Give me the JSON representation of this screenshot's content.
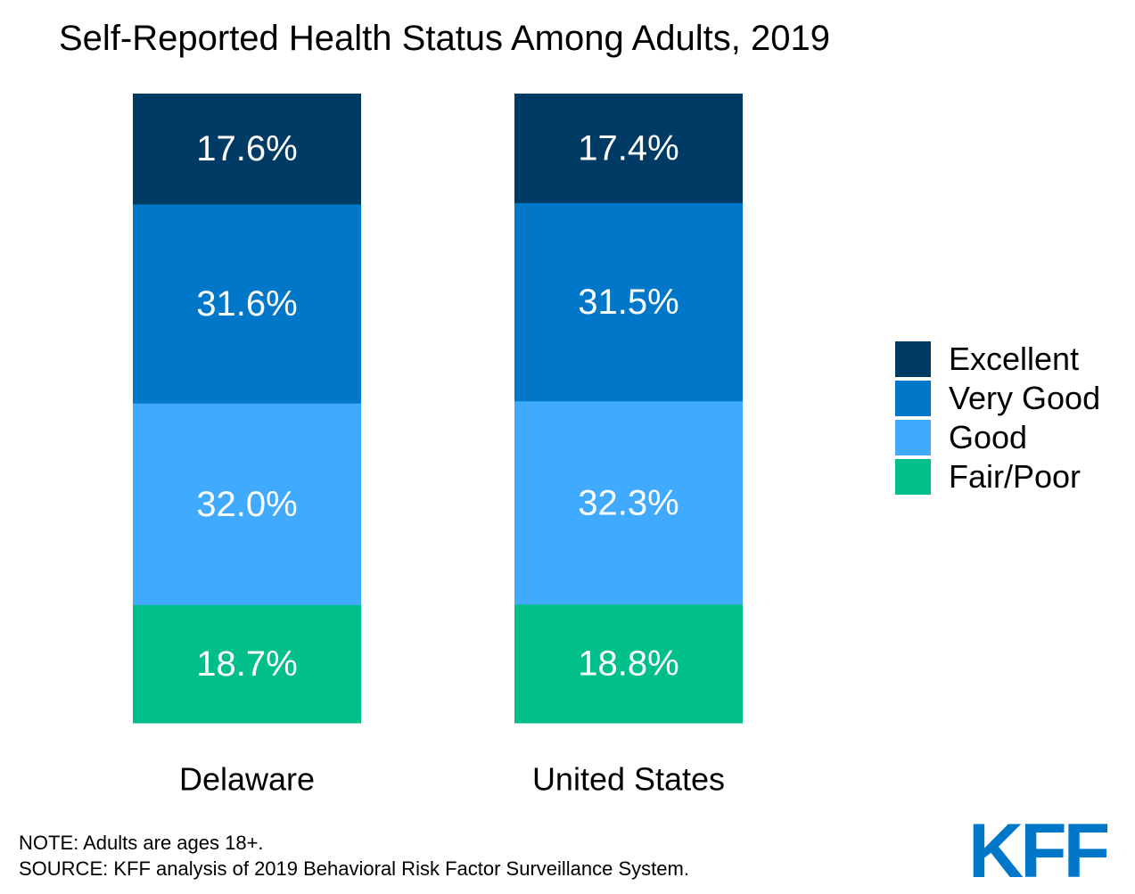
{
  "title": "Self-Reported Health Status Among Adults, 2019",
  "chart_data": {
    "type": "bar",
    "stacked": true,
    "categories": [
      "Delaware",
      "United States"
    ],
    "series": [
      {
        "name": "Excellent",
        "color": "#003b66",
        "values": [
          17.6,
          17.4
        ],
        "labels": [
          "17.6%",
          "17.4%"
        ]
      },
      {
        "name": "Very Good",
        "color": "#0077c8",
        "values": [
          31.6,
          31.5
        ],
        "labels": [
          "31.6%",
          "31.5%"
        ]
      },
      {
        "name": "Good",
        "color": "#40aaff",
        "values": [
          32.0,
          32.3
        ],
        "labels": [
          "32.0%",
          "32.3%"
        ]
      },
      {
        "name": "Fair/Poor",
        "color": "#00bf8a",
        "values": [
          18.7,
          18.8
        ],
        "labels": [
          "18.7%",
          "18.8%"
        ]
      }
    ],
    "ylim": [
      0,
      100
    ],
    "grid": false,
    "legend_position": "right"
  },
  "notes": {
    "note": "NOTE: Adults are ages 18+.",
    "source": "SOURCE: KFF analysis of 2019 Behavioral Risk Factor Surveillance System."
  },
  "logo": {
    "text": "KFF",
    "color": "#0077c8"
  }
}
